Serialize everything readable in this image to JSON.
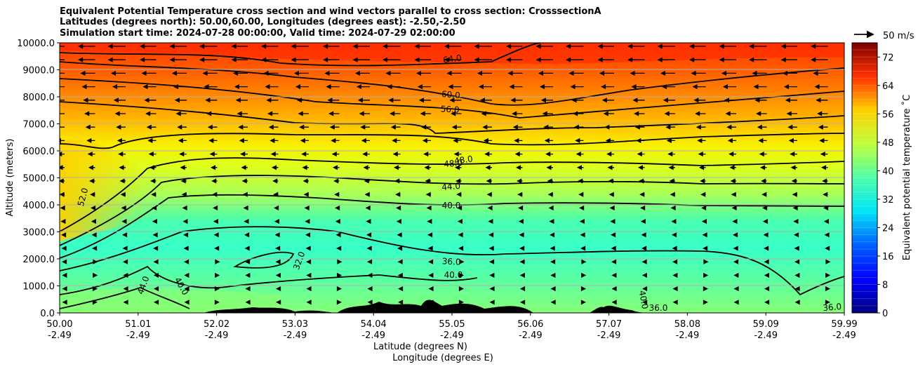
{
  "chart_data": {
    "type": "contourf",
    "title_lines": [
      "Equivalent Potential Temperature cross section and wind vectors parallel to cross section: CrosssectionA",
      "Latitudes (degrees north): 50.00,60.00, Longitudes (degrees east): -2.50,-2.50",
      "Simulation start time: 2024-07-28 00:00:00, Valid time: 2024-07-29 02:00:00"
    ],
    "xlabel": "Latitude (degrees N)",
    "xlabel2": "Longitude (degrees E)",
    "ylabel": "Altitude (meters)",
    "ylim": [
      0,
      10000
    ],
    "yticks": [
      "0.0",
      "1000.0",
      "2000.0",
      "3000.0",
      "4000.0",
      "5000.0",
      "6000.0",
      "7000.0",
      "8000.0",
      "9000.0",
      "10000.0"
    ],
    "xticks_lat": [
      "50.00",
      "51.01",
      "52.02",
      "53.03",
      "54.04",
      "55.05",
      "56.06",
      "57.07",
      "58.08",
      "59.09",
      "59.99"
    ],
    "xticks_lon": [
      "-2.49",
      "-2.49",
      "-2.49",
      "-2.49",
      "-2.49",
      "-2.49",
      "-2.49",
      "-2.49",
      "-2.49",
      "-2.49",
      "-2.49"
    ],
    "colorbar": {
      "label": "Equivalent potential temperature ˚C",
      "ticks": [
        "0",
        "8",
        "16",
        "24",
        "32",
        "40",
        "48",
        "56",
        "64",
        "72"
      ],
      "range": [
        0,
        76
      ]
    },
    "quiver_key": "50 m/s",
    "contour_labels": [
      "64.0",
      "60.0",
      "56.0",
      "48.0",
      "48.0",
      "44.0",
      "40.0",
      "52.0",
      "36.0",
      "40.0",
      "32.0",
      "44.0",
      "40.0",
      "40.0",
      "36.0",
      "36.0"
    ],
    "contour_levels": [
      36,
      40,
      44,
      48,
      52,
      56,
      60,
      64
    ],
    "colors": {
      "top": "#ff3a00",
      "upper": "#ff8000",
      "mid_upper": "#ffc400",
      "mid": "#f5f500",
      "mid_lower": "#b4ff4c",
      "low": "#3cffbe",
      "surface": "#7dff7d"
    }
  }
}
